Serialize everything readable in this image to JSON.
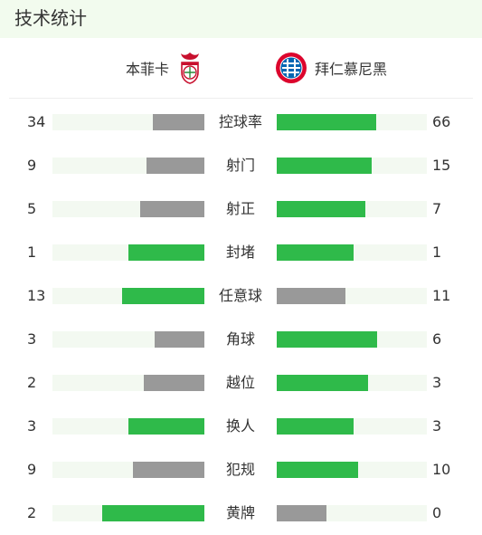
{
  "header": {
    "title": "技术统计"
  },
  "teams": {
    "home": {
      "name": "本菲卡",
      "crest_icon": "benfica-crest-icon"
    },
    "away": {
      "name": "拜仁慕尼黑",
      "crest_icon": "bayern-crest-icon"
    }
  },
  "colors": {
    "win": "#2fba4a",
    "lose": "#999999",
    "track": "#f3f9f1",
    "header_bg": "#f2fbee"
  },
  "stats": [
    {
      "label": "控球率",
      "home": "34",
      "away": "66",
      "home_fill": 0.34,
      "away_fill": 0.66,
      "leader": "away"
    },
    {
      "label": "射门",
      "home": "9",
      "away": "15",
      "home_fill": 0.38,
      "away_fill": 0.63,
      "leader": "away"
    },
    {
      "label": "射正",
      "home": "5",
      "away": "7",
      "home_fill": 0.42,
      "away_fill": 0.59,
      "leader": "away"
    },
    {
      "label": "封堵",
      "home": "1",
      "away": "1",
      "home_fill": 0.5,
      "away_fill": 0.51,
      "leader": "both"
    },
    {
      "label": "任意球",
      "home": "13",
      "away": "11",
      "home_fill": 0.54,
      "away_fill": 0.46,
      "leader": "home"
    },
    {
      "label": "角球",
      "home": "3",
      "away": "6",
      "home_fill": 0.33,
      "away_fill": 0.67,
      "leader": "away"
    },
    {
      "label": "越位",
      "home": "2",
      "away": "3",
      "home_fill": 0.4,
      "away_fill": 0.61,
      "leader": "away"
    },
    {
      "label": "换人",
      "home": "3",
      "away": "3",
      "home_fill": 0.5,
      "away_fill": 0.51,
      "leader": "both"
    },
    {
      "label": "犯规",
      "home": "9",
      "away": "10",
      "home_fill": 0.47,
      "away_fill": 0.54,
      "leader": "away"
    },
    {
      "label": "黄牌",
      "home": "2",
      "away": "0",
      "home_fill": 0.67,
      "away_fill": 0.33,
      "leader": "home"
    }
  ]
}
